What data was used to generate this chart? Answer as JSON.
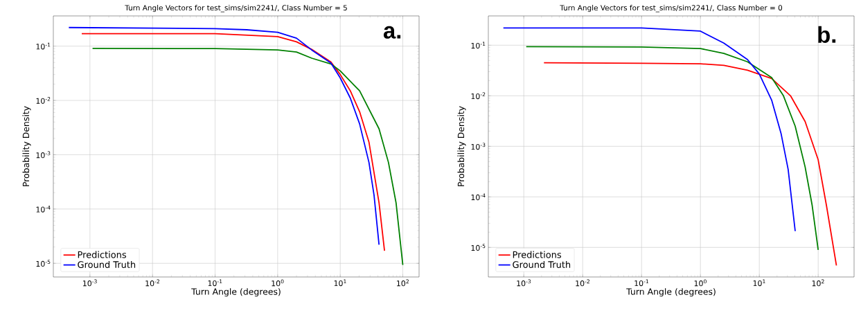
{
  "chart_data": [
    {
      "type": "line",
      "title": "Turn Angle Vectors for test_sims/sim2241/, Class Number = 5",
      "xlabel": "Turn Angle (degrees)",
      "ylabel": "Probability Density",
      "log": "xy",
      "grid": true,
      "legend": "bottom left",
      "annotations": [
        "a."
      ],
      "xlim": [
        0.00026,
        182
      ],
      "ylim": [
        5.6e-06,
        0.36
      ],
      "xticks": [
        {
          "value": 0.001,
          "label": "10$^{-3}$"
        },
        {
          "value": 0.01,
          "label": "10$^{-2}$"
        },
        {
          "value": 0.1,
          "label": "10$^{-1}$"
        },
        {
          "value": 1,
          "label": "10$^{0}$"
        },
        {
          "value": 10,
          "label": "10$^{1}$"
        },
        {
          "value": 100,
          "label": "10$^{2}$"
        }
      ],
      "yticks": [
        {
          "value": 1e-05,
          "label": "10$^{-5}$"
        },
        {
          "value": 0.0001,
          "label": "10$^{-4}$"
        },
        {
          "value": 0.001,
          "label": "10$^{-3}$"
        },
        {
          "value": 0.01,
          "label": "10$^{-2}$"
        },
        {
          "value": 0.1,
          "label": "10$^{-1}$"
        }
      ],
      "series": [
        {
          "name": "Predictions",
          "color": "#ff0000",
          "x": [
            0.00074,
            0.1,
            1,
            2,
            3.5,
            7.1,
            10,
            14.5,
            20.4,
            28.8,
            41.7,
            51
          ],
          "values": [
            0.17,
            0.17,
            0.15,
            0.12,
            0.087,
            0.051,
            0.03,
            0.015,
            0.0062,
            0.0017,
            0.00013,
            1.7e-05
          ]
        },
        {
          "color": "#008000",
          "x": [
            0.0011,
            0.1,
            1,
            2,
            3.5,
            7.1,
            10,
            20.4,
            41.7,
            59,
            78,
            100
          ],
          "values": [
            0.091,
            0.09,
            0.085,
            0.078,
            0.06,
            0.047,
            0.035,
            0.015,
            0.003,
            0.00072,
            0.00013,
            9.3e-06
          ]
        },
        {
          "name": "Ground Truth",
          "color": "#0000ff",
          "x": [
            0.00046,
            0.1,
            0.32,
            1,
            2,
            3.5,
            7.1,
            10,
            14.5,
            20.4,
            28.8,
            34.7,
            41.7
          ],
          "values": [
            0.22,
            0.21,
            0.2,
            0.18,
            0.14,
            0.085,
            0.049,
            0.026,
            0.011,
            0.0037,
            0.00072,
            0.00018,
            2.2e-05
          ]
        }
      ]
    },
    {
      "type": "line",
      "title": "Turn Angle Vectors for test_sims/sim2241/, Class Number = 0",
      "xlabel": "Turn Angle (degrees)",
      "ylabel": "Probability Density",
      "log": "xy",
      "grid": true,
      "legend": "bottom left",
      "annotations": [
        "b."
      ],
      "xlim": [
        0.00025,
        407
      ],
      "ylim": [
        2.6e-06,
        0.38
      ],
      "xticks": [
        {
          "value": 0.001,
          "label": "10$^{-3}$"
        },
        {
          "value": 0.01,
          "label": "10$^{-2}$"
        },
        {
          "value": 0.1,
          "label": "10$^{-1}$"
        },
        {
          "value": 1,
          "label": "10$^{0}$"
        },
        {
          "value": 10,
          "label": "10$^{1}$"
        },
        {
          "value": 100,
          "label": "10$^{2}$"
        }
      ],
      "yticks": [
        {
          "value": 1e-05,
          "label": "10$^{-5}$"
        },
        {
          "value": 0.0001,
          "label": "10$^{-4}$"
        },
        {
          "value": 0.001,
          "label": "10$^{-3}$"
        },
        {
          "value": 0.01,
          "label": "10$^{-2}$"
        },
        {
          "value": 0.1,
          "label": "10$^{-1}$"
        }
      ],
      "series": [
        {
          "name": "Predictions",
          "color": "#ff0000",
          "x": [
            0.0022,
            0.1,
            1,
            2.5,
            6.3,
            16.2,
            33.9,
            60,
            100,
            138,
            204
          ],
          "values": [
            0.045,
            0.044,
            0.043,
            0.04,
            0.032,
            0.022,
            0.01,
            0.0031,
            0.00054,
            6.8e-05,
            4.4e-06
          ]
        },
        {
          "color": "#008000",
          "x": [
            0.0011,
            0.1,
            1,
            2.5,
            6.3,
            16.2,
            25.7,
            40.7,
            60,
            79,
            100
          ],
          "values": [
            0.094,
            0.092,
            0.086,
            0.069,
            0.047,
            0.023,
            0.01,
            0.0025,
            0.00039,
            6.8e-05,
            8.9e-06
          ]
        },
        {
          "name": "Ground Truth",
          "color": "#0000ff",
          "x": [
            0.00045,
            0.1,
            1,
            2.5,
            6.3,
            10,
            16.2,
            23.4,
            30.9,
            40.7
          ],
          "values": [
            0.22,
            0.22,
            0.19,
            0.11,
            0.052,
            0.027,
            0.0082,
            0.0018,
            0.00035,
            2.1e-05
          ]
        }
      ]
    }
  ]
}
